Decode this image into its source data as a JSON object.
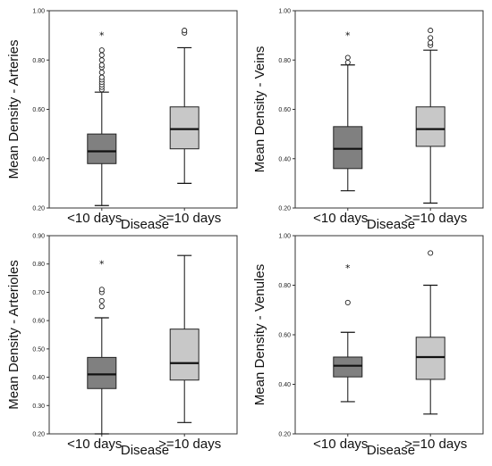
{
  "chart_data": [
    {
      "type": "box",
      "title": "",
      "xlabel": "Disease",
      "ylabel": "Mean Density - Arteries",
      "ylim": [
        0.2,
        1.0
      ],
      "yticks": [
        "0.20",
        "0.40",
        "0.60",
        "0.80",
        "1.00"
      ],
      "yticks_values": [
        0.2,
        0.4,
        0.6,
        0.8,
        1.0
      ],
      "categories": [
        "<10 days",
        ">=10 days"
      ],
      "grid": false,
      "boxes": [
        {
          "category": "<10 days",
          "fill": "#808080",
          "whisker_low": 0.21,
          "q1": 0.38,
          "median": 0.43,
          "q3": 0.5,
          "whisker_high": 0.67,
          "outliers": [
            0.68,
            0.69,
            0.7,
            0.71,
            0.72,
            0.73,
            0.75,
            0.77,
            0.78,
            0.8,
            0.82,
            0.84
          ],
          "extremes": [
            0.9
          ]
        },
        {
          "category": ">=10 days",
          "fill": "#c8c8c8",
          "whisker_low": 0.3,
          "q1": 0.44,
          "median": 0.52,
          "q3": 0.61,
          "whisker_high": 0.85,
          "outliers": [
            0.91,
            0.92
          ],
          "extremes": []
        }
      ]
    },
    {
      "type": "box",
      "title": "",
      "xlabel": "Disease",
      "ylabel": "Mean Density - Veins",
      "ylim": [
        0.2,
        1.0
      ],
      "yticks": [
        "0.20",
        "0.40",
        "0.60",
        "0.80",
        "1.00"
      ],
      "yticks_values": [
        0.2,
        0.4,
        0.6,
        0.8,
        1.0
      ],
      "categories": [
        "<10 days",
        ">=10 days"
      ],
      "grid": false,
      "boxes": [
        {
          "category": "<10 days",
          "fill": "#808080",
          "whisker_low": 0.27,
          "q1": 0.36,
          "median": 0.44,
          "q3": 0.53,
          "whisker_high": 0.78,
          "outliers": [
            0.79,
            0.81
          ],
          "extremes": [
            0.9
          ]
        },
        {
          "category": ">=10 days",
          "fill": "#c8c8c8",
          "whisker_low": 0.22,
          "q1": 0.45,
          "median": 0.52,
          "q3": 0.61,
          "whisker_high": 0.84,
          "outliers": [
            0.86,
            0.87,
            0.89,
            0.92
          ],
          "extremes": []
        }
      ]
    },
    {
      "type": "box",
      "title": "",
      "xlabel": "Disease",
      "ylabel": "Mean Density - Arterioles",
      "ylim": [
        0.2,
        0.9
      ],
      "yticks": [
        "0.20",
        "0.30",
        "0.40",
        "0.50",
        "0.60",
        "0.70",
        "0.80",
        "0.90"
      ],
      "yticks_values": [
        0.2,
        0.3,
        0.4,
        0.5,
        0.6,
        0.7,
        0.8,
        0.9
      ],
      "categories": [
        "<10 days",
        ">=10 days"
      ],
      "grid": false,
      "boxes": [
        {
          "category": "<10 days",
          "fill": "#808080",
          "whisker_low": 0.2,
          "q1": 0.36,
          "median": 0.41,
          "q3": 0.47,
          "whisker_high": 0.61,
          "outliers": [
            0.65,
            0.67,
            0.7,
            0.71
          ],
          "extremes": [
            0.8
          ]
        },
        {
          "category": ">=10 days",
          "fill": "#c8c8c8",
          "whisker_low": 0.24,
          "q1": 0.39,
          "median": 0.45,
          "q3": 0.57,
          "whisker_high": 0.83,
          "outliers": [],
          "extremes": []
        }
      ]
    },
    {
      "type": "box",
      "title": "",
      "xlabel": "Disease",
      "ylabel": "Mean Density - Venules",
      "ylim": [
        0.2,
        1.0
      ],
      "yticks": [
        "0.20",
        "0.40",
        "0.60",
        "0.80",
        "1.00"
      ],
      "yticks_values": [
        0.2,
        0.4,
        0.6,
        0.8,
        1.0
      ],
      "categories": [
        "<10 days",
        ">=10 days"
      ],
      "grid": false,
      "boxes": [
        {
          "category": "<10 days",
          "fill": "#808080",
          "whisker_low": 0.33,
          "q1": 0.43,
          "median": 0.475,
          "q3": 0.51,
          "whisker_high": 0.61,
          "outliers": [
            0.73
          ],
          "extremes": [
            0.87
          ]
        },
        {
          "category": ">=10 days",
          "fill": "#c8c8c8",
          "whisker_low": 0.28,
          "q1": 0.42,
          "median": 0.51,
          "q3": 0.59,
          "whisker_high": 0.8,
          "outliers": [
            0.93
          ],
          "extremes": []
        }
      ]
    }
  ]
}
